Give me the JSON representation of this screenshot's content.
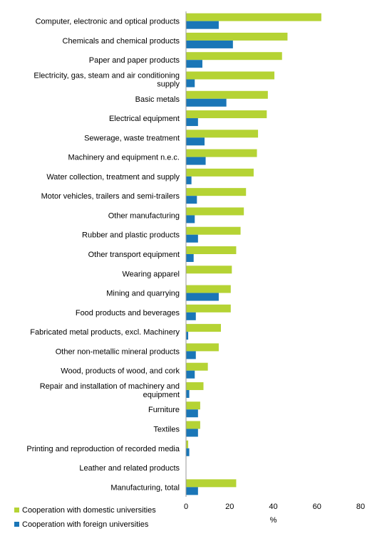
{
  "chart_data": {
    "type": "bar",
    "orientation": "horizontal",
    "categories": [
      "Computer, electronic and optical products",
      "Chemicals and chemical products",
      "Paper and paper products",
      "Electricity, gas, steam and air conditioning supply",
      "Basic metals",
      "Electrical equipment",
      "Sewerage, waste treatment",
      "Machinery and equipment n.e.c.",
      "Water collection, treatment and supply",
      "Motor vehicles, trailers and semi-trailers",
      "Other manufacturing",
      "Rubber and plastic products",
      "Other transport equipment",
      "Wearing apparel",
      "Mining and quarrying",
      "Food products and beverages",
      "Fabricated metal products, excl. Machinery",
      "Other non-metallic mineral products",
      "Wood, products of wood, and cork",
      "Repair and installation of machinery and equipment",
      "Furniture",
      "Textiles",
      "Printing and reproduction of recorded media",
      "Leather and related products",
      "Manufacturing, total"
    ],
    "series": [
      {
        "name": "Cooperation with domestic universities",
        "color": "#b5d334",
        "values": [
          62,
          46.5,
          44,
          40.5,
          37.5,
          37,
          33,
          32.5,
          31,
          27.5,
          26.5,
          25,
          23,
          21,
          20.5,
          20.5,
          16,
          15,
          10,
          8,
          6.5,
          6.5,
          1,
          0,
          23
        ]
      },
      {
        "name": "Cooperation with foreign universities",
        "color": "#1a76b7",
        "values": [
          15,
          21.5,
          7.5,
          4,
          18.5,
          5.5,
          8.5,
          9,
          2.5,
          5,
          4,
          5.5,
          3.5,
          0,
          15,
          4.5,
          1,
          4.5,
          4,
          1.5,
          5.5,
          5.5,
          1.5,
          0,
          5.5
        ]
      }
    ],
    "xlim": [
      0,
      80
    ],
    "xticks": [
      "0",
      "20",
      "40",
      "60",
      "80"
    ],
    "xlabel": "%",
    "legend_position": "bottom-left",
    "grid": false
  }
}
